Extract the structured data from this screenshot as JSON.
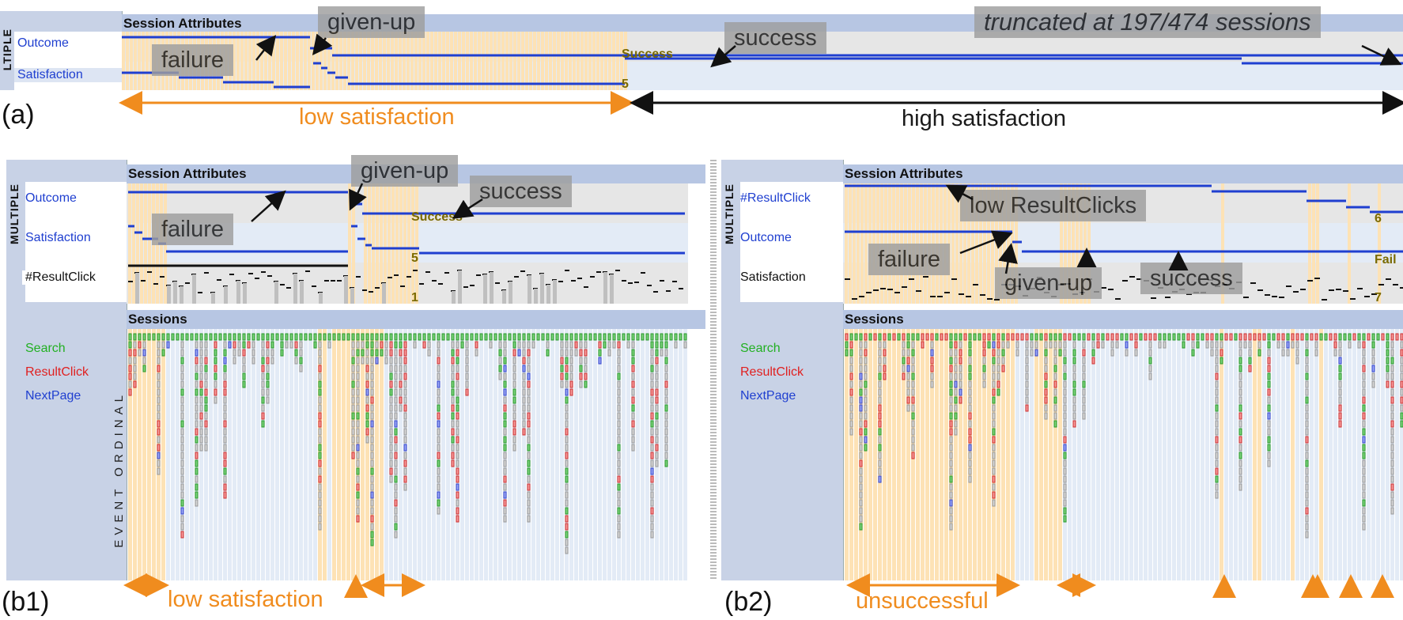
{
  "panel_a": {
    "id_label": "(a)",
    "sidebar_label": "LTIPLE",
    "header": "Session Attributes",
    "rows": [
      {
        "label": "Outcome",
        "color": "#1f3fd0"
      },
      {
        "label": "Satisfaction",
        "color": "#1f3fd0"
      }
    ],
    "callouts": {
      "failure": "failure",
      "given_up": "given-up",
      "success": "success",
      "truncated": "truncated at 197/474 sessions"
    },
    "inline_labels": {
      "success": "Success",
      "five": "5"
    },
    "ranges": {
      "low": "low satisfaction",
      "high": "high satisfaction"
    }
  },
  "panel_b1": {
    "id_label": "(b1)",
    "sidebar_label": "MULTIPLE",
    "header": "Session Attributes",
    "sessions_header": "Sessions",
    "rows": [
      {
        "label": "Outcome",
        "color": "#1f3fd0"
      },
      {
        "label": "Satisfaction",
        "color": "#1f3fd0"
      },
      {
        "label": "#ResultClick",
        "color": "#111111"
      }
    ],
    "event_types": [
      {
        "label": "Search",
        "color": "#22b022"
      },
      {
        "label": "ResultClick",
        "color": "#e02020"
      },
      {
        "label": "NextPage",
        "color": "#1f3fd0"
      }
    ],
    "axis_label": "EVENT ORDINAL",
    "callouts": {
      "failure": "failure",
      "given_up": "given-up",
      "success": "success"
    },
    "inline_labels": {
      "success": "Success",
      "five": "5",
      "one": "1"
    },
    "ranges": {
      "low": "low satisfaction"
    }
  },
  "panel_b2": {
    "id_label": "(b2)",
    "sidebar_label": "MULTIPLE",
    "header": "Session Attributes",
    "sessions_header": "Sessions",
    "rows": [
      {
        "label": "#ResultClick",
        "color": "#1f3fd0"
      },
      {
        "label": "Outcome",
        "color": "#1f3fd0"
      },
      {
        "label": "Satisfaction",
        "color": "#111111"
      }
    ],
    "event_types": [
      {
        "label": "Search",
        "color": "#22b022"
      },
      {
        "label": "ResultClick",
        "color": "#e02020"
      },
      {
        "label": "NextPage",
        "color": "#1f3fd0"
      }
    ],
    "callouts": {
      "low_resultclicks": "low ResultClicks",
      "failure": "failure",
      "given_up": "given-up",
      "success": "success"
    },
    "inline_labels": {
      "six": "6",
      "fail": "Fail",
      "seven": "7"
    },
    "ranges": {
      "unsuccessful": "unsuccessful"
    }
  },
  "colors": {
    "highlight": "#fde2b5",
    "stripe": "#e3ebf6",
    "accent_orange": "#f08c1e",
    "line_blue": "#1f3fd0"
  }
}
